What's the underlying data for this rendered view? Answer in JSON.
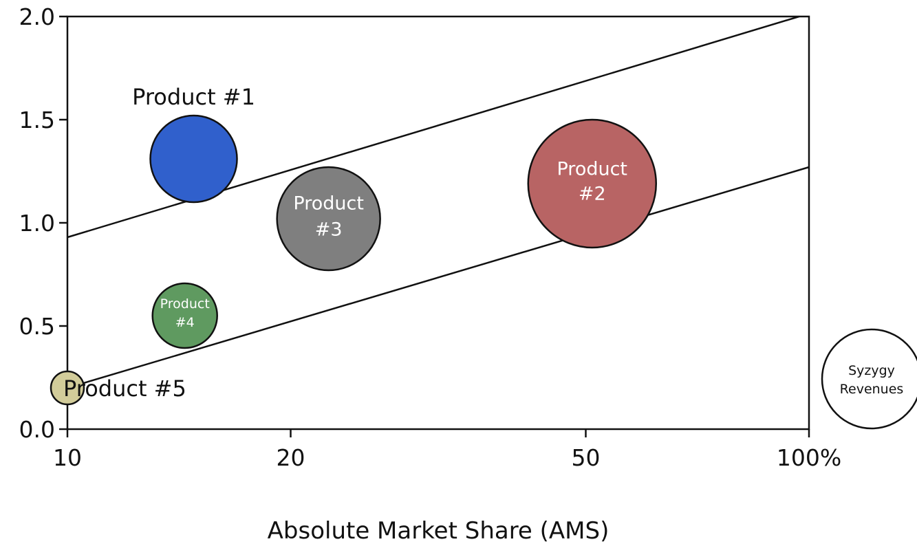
{
  "chart_data": {
    "type": "scatter",
    "title": "",
    "xlabel": "Absolute Market Share (AMS)",
    "ylabel": "",
    "x_scale": "log",
    "xlim": [
      10,
      100
    ],
    "ylim": [
      0,
      2.0
    ],
    "x_ticks": [
      {
        "value": 10,
        "label": "10"
      },
      {
        "value": 20,
        "label": "20"
      },
      {
        "value": 50,
        "label": "50"
      },
      {
        "value": 100,
        "label": "100%"
      }
    ],
    "y_ticks": [
      {
        "value": 0,
        "label": "0.0"
      },
      {
        "value": 0.5,
        "label": "0.5"
      },
      {
        "value": 1.0,
        "label": "1.0"
      },
      {
        "value": 1.5,
        "label": "1.5"
      },
      {
        "value": 2.0,
        "label": "2.0"
      }
    ],
    "grid": false,
    "lines": [
      {
        "x": [
          10,
          97
        ],
        "y": [
          0.93,
          2.0
        ]
      },
      {
        "x": [
          10,
          100
        ],
        "y": [
          0.2,
          1.27
        ]
      }
    ],
    "bubbles": [
      {
        "label_lines": [
          "Product #1"
        ],
        "label_position": "above",
        "x": 14.8,
        "y": 1.31,
        "size_rank": 3,
        "color": "#3060CC"
      },
      {
        "label_lines": [
          "Product",
          "#2"
        ],
        "label_position": "inside",
        "x": 51,
        "y": 1.19,
        "size_rank": 1,
        "color": "#B86464"
      },
      {
        "label_lines": [
          "Product",
          "#3"
        ],
        "label_position": "inside",
        "x": 22.5,
        "y": 1.02,
        "size_rank": 2,
        "color": "#7F7F7F"
      },
      {
        "label_lines": [
          "Product",
          "#4"
        ],
        "label_position": "inside",
        "x": 14.4,
        "y": 0.55,
        "size_rank": 4,
        "color": "#5F9A60"
      },
      {
        "label_lines": [
          "Product #5"
        ],
        "label_position": "right",
        "x": 10,
        "y": 0.2,
        "size_rank": 5,
        "color": "#D2CC9A"
      }
    ],
    "size_legend": {
      "label_lines": [
        "Syzygy",
        "Revenues"
      ],
      "placement": "right"
    }
  }
}
